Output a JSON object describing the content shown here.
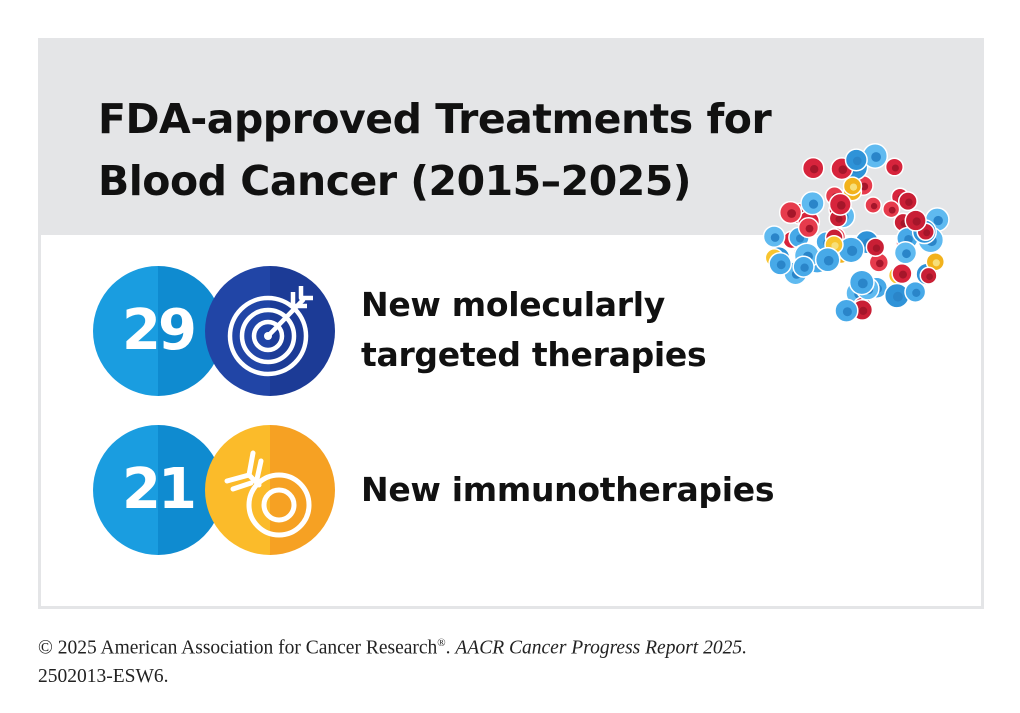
{
  "header": {
    "title_line1": "FDA-approved Treatments for",
    "title_line2": "Blood Cancer (2015–2025)"
  },
  "stats": [
    {
      "value": "29",
      "label_line1": "New molecularly",
      "label_line2": "targeted therapies",
      "icon": "target-icon",
      "color": "#2145a6"
    },
    {
      "value": "21",
      "label_line1": "New immunotherapies",
      "icon": "antibody-icon",
      "color": "#f6a123"
    }
  ],
  "badge_color": "#1a9de0",
  "illustration": "blood-cells-illustration",
  "footer": {
    "copyright": "© 2025 American Association for Cancer Research",
    "registered": "®",
    "separator": ". ",
    "report": "AACR Cancer Progress Report 2025.",
    "code": "2502013-ESW6."
  }
}
